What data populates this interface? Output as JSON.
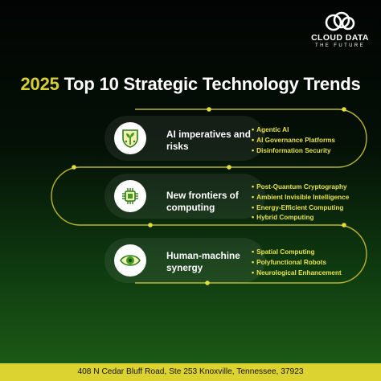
{
  "brand": {
    "name": "CLOUD DATA",
    "tagline": "THE FUTURE"
  },
  "title": {
    "year": "2025",
    "rest": "Top 10 Strategic Technology Trends"
  },
  "sections": [
    {
      "icon": "ai-plant-shield-icon",
      "title": "AI imperatives and risks",
      "items": [
        "Agentic AI",
        "AI Governance Platforms",
        "Disinformation Security"
      ]
    },
    {
      "icon": "chip-icon",
      "title": "New frontiers of computing",
      "items": [
        "Post-Quantum Cryptography",
        "Ambient Invisible Intelligence",
        "Energy-Efficient Computing",
        "Hybrid Computing"
      ]
    },
    {
      "icon": "eye-icon",
      "title": "Human-machine synergy",
      "items": [
        "Spatial Computing",
        "Polyfunctional Robots",
        "Neurological Enhancement"
      ]
    }
  ],
  "footer": {
    "address": "408 N Cedar Bluff Road, Ste 253 Knoxville, Tennessee,  37923"
  },
  "colors": {
    "accent": "#d8d030",
    "footer_bg": "#dcd331",
    "path": "#b8b62a"
  }
}
